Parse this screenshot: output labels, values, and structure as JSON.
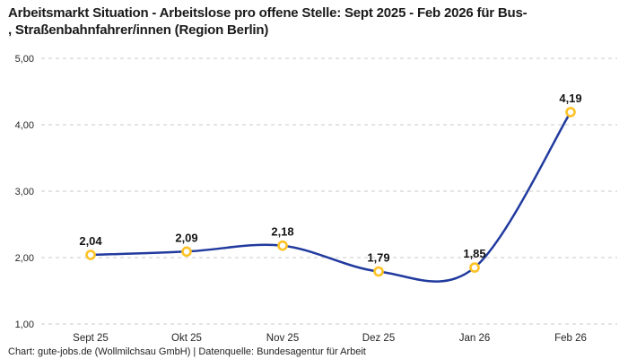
{
  "page": {
    "title_line1": "Arbeitsmarkt Situation - Arbeitslose pro offene Stelle: Sept 2025 - Feb 2026 für Bus-",
    "title_line2": ", Straßenbahnfahrer/innen (Region Berlin)",
    "footer": "Chart: gute-jobs.de (Wollmilchsau GmbH) | Datenquelle: Bundesagentur für Arbeit"
  },
  "chart_data": {
    "type": "line",
    "title": "Arbeitsmarkt Situation - Arbeitslose pro offene Stelle: Sept 2025 - Feb 2026 für Bus-, Straßenbahnfahrer/innen (Region Berlin)",
    "categories": [
      "Sept 25",
      "Okt 25",
      "Nov 25",
      "Dez 25",
      "Jan 26",
      "Feb 26"
    ],
    "values": [
      2.04,
      2.09,
      2.18,
      1.79,
      1.85,
      4.19
    ],
    "point_labels": [
      "2,04",
      "2,09",
      "2,18",
      "1,79",
      "1,85",
      "4,19"
    ],
    "y_tick_labels": [
      "1,00",
      "2,00",
      "3,00",
      "4,00",
      "5,00"
    ],
    "ylim": [
      1,
      5
    ],
    "xlabel": "",
    "ylabel": "",
    "legend": "none",
    "grid": "horizontal-dashed",
    "smooth": true,
    "colors": {
      "line": "#213a9e",
      "marker_ring": "#ffc224",
      "marker_fill": "#ffffff",
      "grid": "#c9c9c9",
      "tick_text": "#262626",
      "label_text": "#141414"
    }
  }
}
